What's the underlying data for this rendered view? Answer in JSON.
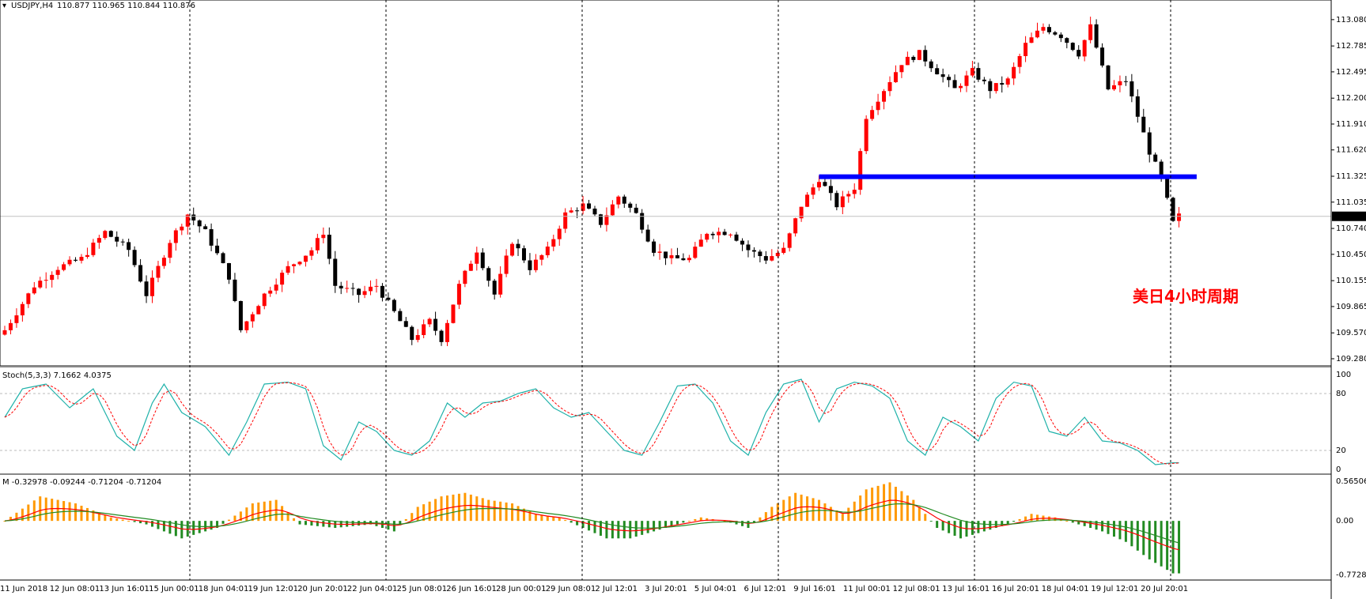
{
  "header": {
    "symbol": "USDJPY,H4",
    "ohlc": "110.877 110.965 110.844 110.876"
  },
  "annotation": "美日4小时周期",
  "price_panel": {
    "current_price": "110.876",
    "ylim": [
      109.2,
      113.3
    ],
    "ticks": [
      "113.080",
      "112.785",
      "112.495",
      "112.200",
      "111.910",
      "111.620",
      "111.325",
      "111.035",
      "110.740",
      "110.450",
      "110.155",
      "109.865",
      "109.570",
      "109.280"
    ],
    "tick_values": [
      113.08,
      112.785,
      112.495,
      112.2,
      111.91,
      111.62,
      111.325,
      111.035,
      110.74,
      110.45,
      110.155,
      109.865,
      109.57,
      109.28
    ],
    "support_line": {
      "price": 111.32,
      "color": "#0000ff"
    }
  },
  "stoch_panel": {
    "label": "Stoch(5,3,3) 7.1662 4.0375",
    "ticks": [
      "100",
      "80",
      "20",
      "0"
    ],
    "tick_values": [
      100,
      80,
      20,
      0
    ]
  },
  "macd_panel": {
    "label": "M -0.32978 -0.09244 -0.71204 -0.71204",
    "ticks": [
      "0.56506",
      "0.00",
      "-0.77285"
    ],
    "tick_values": [
      0.56506,
      0,
      -0.77285
    ]
  },
  "x_labels": [
    "11 Jun 2018",
    "12 Jun 08:01",
    "13 Jun 16:01",
    "15 Jun 00:01",
    "18 Jun 04:01",
    "19 Jun 12:01",
    "20 Jun 20:01",
    "22 Jun 04:01",
    "25 Jun 08:01",
    "26 Jun 16:01",
    "28 Jun 00:01",
    "29 Jun 08:01",
    "2 Jul 12:01",
    "3 Jul 20:01",
    "5 Jul 04:01",
    "6 Jul 12:01",
    "9 Jul 16:01",
    "11 Jul 00:01",
    "12 Jul 08:01",
    "13 Jul 16:01",
    "16 Jul 20:01",
    "18 Jul 04:01",
    "19 Jul 12:01",
    "20 Jul 20:01"
  ],
  "colors": {
    "bull": "#ff0000",
    "bear": "#000000",
    "stoch_main": "#20b2aa",
    "stoch_signal": "#ff0000",
    "hist_up": "#ff9900",
    "hist_down": "#228b22",
    "macd_line": "#ff0000",
    "signal_line": "#228b22"
  },
  "chart_data": {
    "type": "candlestick",
    "title": "USDJPY,H4",
    "anchors": [
      [
        0,
        109.6
      ],
      [
        5,
        110.1
      ],
      [
        9,
        110.3
      ],
      [
        13,
        110.4
      ],
      [
        17,
        110.7
      ],
      [
        21,
        110.5
      ],
      [
        24,
        110.0
      ],
      [
        28,
        110.6
      ],
      [
        31,
        110.9
      ],
      [
        34,
        110.7
      ],
      [
        38,
        110.2
      ],
      [
        40,
        109.6
      ],
      [
        44,
        110.0
      ],
      [
        48,
        110.3
      ],
      [
        52,
        110.5
      ],
      [
        54,
        110.7
      ],
      [
        56,
        110.1
      ],
      [
        60,
        110.0
      ],
      [
        63,
        110.1
      ],
      [
        66,
        109.8
      ],
      [
        69,
        109.5
      ],
      [
        72,
        109.7
      ],
      [
        74,
        109.5
      ],
      [
        77,
        110.1
      ],
      [
        80,
        110.5
      ],
      [
        83,
        110.0
      ],
      [
        86,
        110.6
      ],
      [
        89,
        110.3
      ],
      [
        92,
        110.5
      ],
      [
        95,
        110.9
      ],
      [
        98,
        111.0
      ],
      [
        101,
        110.8
      ],
      [
        104,
        111.1
      ],
      [
        107,
        110.9
      ],
      [
        110,
        110.5
      ],
      [
        113,
        110.4
      ],
      [
        116,
        110.4
      ],
      [
        119,
        110.7
      ],
      [
        123,
        110.7
      ],
      [
        126,
        110.5
      ],
      [
        129,
        110.4
      ],
      [
        132,
        110.5
      ],
      [
        135,
        111.0
      ],
      [
        138,
        111.3
      ],
      [
        141,
        111.0
      ],
      [
        144,
        111.2
      ],
      [
        146,
        112.0
      ],
      [
        149,
        112.3
      ],
      [
        152,
        112.6
      ],
      [
        155,
        112.7
      ],
      [
        158,
        112.5
      ],
      [
        161,
        112.3
      ],
      [
        164,
        112.5
      ],
      [
        167,
        112.3
      ],
      [
        170,
        112.4
      ],
      [
        173,
        112.8
      ],
      [
        176,
        113.0
      ],
      [
        179,
        112.9
      ],
      [
        182,
        112.7
      ],
      [
        184,
        113.0
      ],
      [
        187,
        112.3
      ],
      [
        190,
        112.4
      ],
      [
        192,
        112.0
      ],
      [
        194,
        111.6
      ],
      [
        196,
        111.3
      ],
      [
        198,
        110.8
      ],
      [
        199,
        110.88
      ]
    ],
    "stoch_anchors": [
      [
        0,
        55
      ],
      [
        3,
        85
      ],
      [
        7,
        90
      ],
      [
        11,
        65
      ],
      [
        15,
        85
      ],
      [
        19,
        35
      ],
      [
        22,
        20
      ],
      [
        25,
        70
      ],
      [
        27,
        90
      ],
      [
        30,
        60
      ],
      [
        34,
        45
      ],
      [
        38,
        15
      ],
      [
        41,
        50
      ],
      [
        44,
        90
      ],
      [
        48,
        92
      ],
      [
        51,
        85
      ],
      [
        54,
        25
      ],
      [
        57,
        10
      ],
      [
        60,
        50
      ],
      [
        63,
        40
      ],
      [
        66,
        20
      ],
      [
        69,
        15
      ],
      [
        72,
        30
      ],
      [
        75,
        70
      ],
      [
        78,
        55
      ],
      [
        81,
        70
      ],
      [
        84,
        72
      ],
      [
        87,
        80
      ],
      [
        90,
        85
      ],
      [
        93,
        65
      ],
      [
        96,
        55
      ],
      [
        99,
        60
      ],
      [
        102,
        40
      ],
      [
        105,
        20
      ],
      [
        108,
        15
      ],
      [
        111,
        50
      ],
      [
        114,
        88
      ],
      [
        117,
        90
      ],
      [
        120,
        70
      ],
      [
        123,
        30
      ],
      [
        126,
        15
      ],
      [
        129,
        60
      ],
      [
        132,
        90
      ],
      [
        135,
        95
      ],
      [
        138,
        50
      ],
      [
        141,
        85
      ],
      [
        144,
        92
      ],
      [
        147,
        88
      ],
      [
        150,
        75
      ],
      [
        153,
        30
      ],
      [
        156,
        15
      ],
      [
        159,
        55
      ],
      [
        162,
        45
      ],
      [
        165,
        30
      ],
      [
        168,
        75
      ],
      [
        171,
        92
      ],
      [
        174,
        88
      ],
      [
        177,
        40
      ],
      [
        180,
        35
      ],
      [
        183,
        55
      ],
      [
        186,
        30
      ],
      [
        189,
        28
      ],
      [
        192,
        20
      ],
      [
        195,
        5
      ],
      [
        198,
        7
      ]
    ],
    "macd_anchors": [
      [
        0,
        0.0
      ],
      [
        6,
        0.35
      ],
      [
        12,
        0.25
      ],
      [
        18,
        0.05
      ],
      [
        24,
        -0.05
      ],
      [
        30,
        -0.25
      ],
      [
        36,
        -0.1
      ],
      [
        42,
        0.25
      ],
      [
        46,
        0.3
      ],
      [
        50,
        -0.05
      ],
      [
        56,
        -0.1
      ],
      [
        62,
        -0.05
      ],
      [
        66,
        -0.15
      ],
      [
        70,
        0.2
      ],
      [
        74,
        0.35
      ],
      [
        78,
        0.4
      ],
      [
        82,
        0.3
      ],
      [
        86,
        0.25
      ],
      [
        90,
        0.1
      ],
      [
        94,
        0.05
      ],
      [
        98,
        -0.1
      ],
      [
        102,
        -0.25
      ],
      [
        106,
        -0.25
      ],
      [
        110,
        -0.15
      ],
      [
        114,
        -0.05
      ],
      [
        118,
        0.05
      ],
      [
        122,
        0.0
      ],
      [
        126,
        -0.1
      ],
      [
        130,
        0.2
      ],
      [
        134,
        0.4
      ],
      [
        138,
        0.3
      ],
      [
        142,
        0.1
      ],
      [
        146,
        0.45
      ],
      [
        150,
        0.55
      ],
      [
        154,
        0.3
      ],
      [
        158,
        -0.1
      ],
      [
        162,
        -0.25
      ],
      [
        166,
        -0.15
      ],
      [
        170,
        -0.05
      ],
      [
        174,
        0.1
      ],
      [
        178,
        0.05
      ],
      [
        182,
        -0.05
      ],
      [
        186,
        -0.15
      ],
      [
        190,
        -0.3
      ],
      [
        194,
        -0.55
      ],
      [
        198,
        -0.75
      ]
    ]
  }
}
